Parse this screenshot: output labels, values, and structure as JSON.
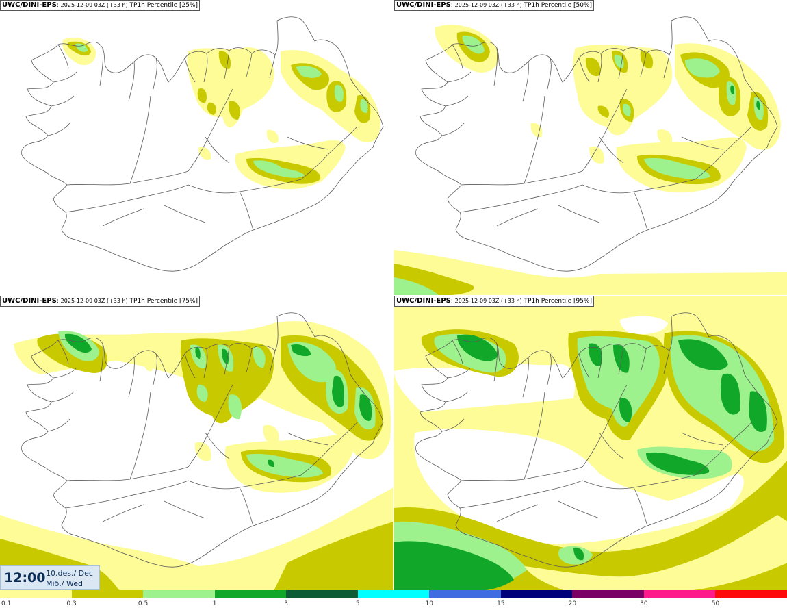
{
  "panels": [
    {
      "source": "UWC/DINI-EPS",
      "run": "2025-12-09 03Z (+33 h)",
      "field": "TP1h Percentile [25%]"
    },
    {
      "source": "UWC/DINI-EPS",
      "run": "2025-12-09 03Z (+33 h)",
      "field": "TP1h Percentile [50%]"
    },
    {
      "source": "UWC/DINI-EPS",
      "run": "2025-12-09 03Z (+33 h)",
      "field": "TP1h Percentile [75%]"
    },
    {
      "source": "UWC/DINI-EPS",
      "run": "2025-12-09 03Z (+33 h)",
      "field": "TP1h Percentile [95%]"
    }
  ],
  "valid_time": {
    "time": "12:00",
    "date": "10.des./ Dec",
    "day": "Mið./ Wed"
  },
  "legend": {
    "ticks": [
      "0.1",
      "0.3",
      "0.5",
      "1",
      "3",
      "5",
      "10",
      "15",
      "20",
      "30",
      "50"
    ],
    "colors": [
      "#fdfc97",
      "#c9c900",
      "#9df28d",
      "#11a829",
      "#0c5c35",
      "#00ffff",
      "#3f6ce0",
      "#00007a",
      "#7a0066",
      "#ff1a8c",
      "#ff0a0a"
    ]
  },
  "colors": {
    "c01": "#fdfc97",
    "c03": "#c9c900",
    "c05": "#9df28d",
    "c1": "#11a829"
  }
}
